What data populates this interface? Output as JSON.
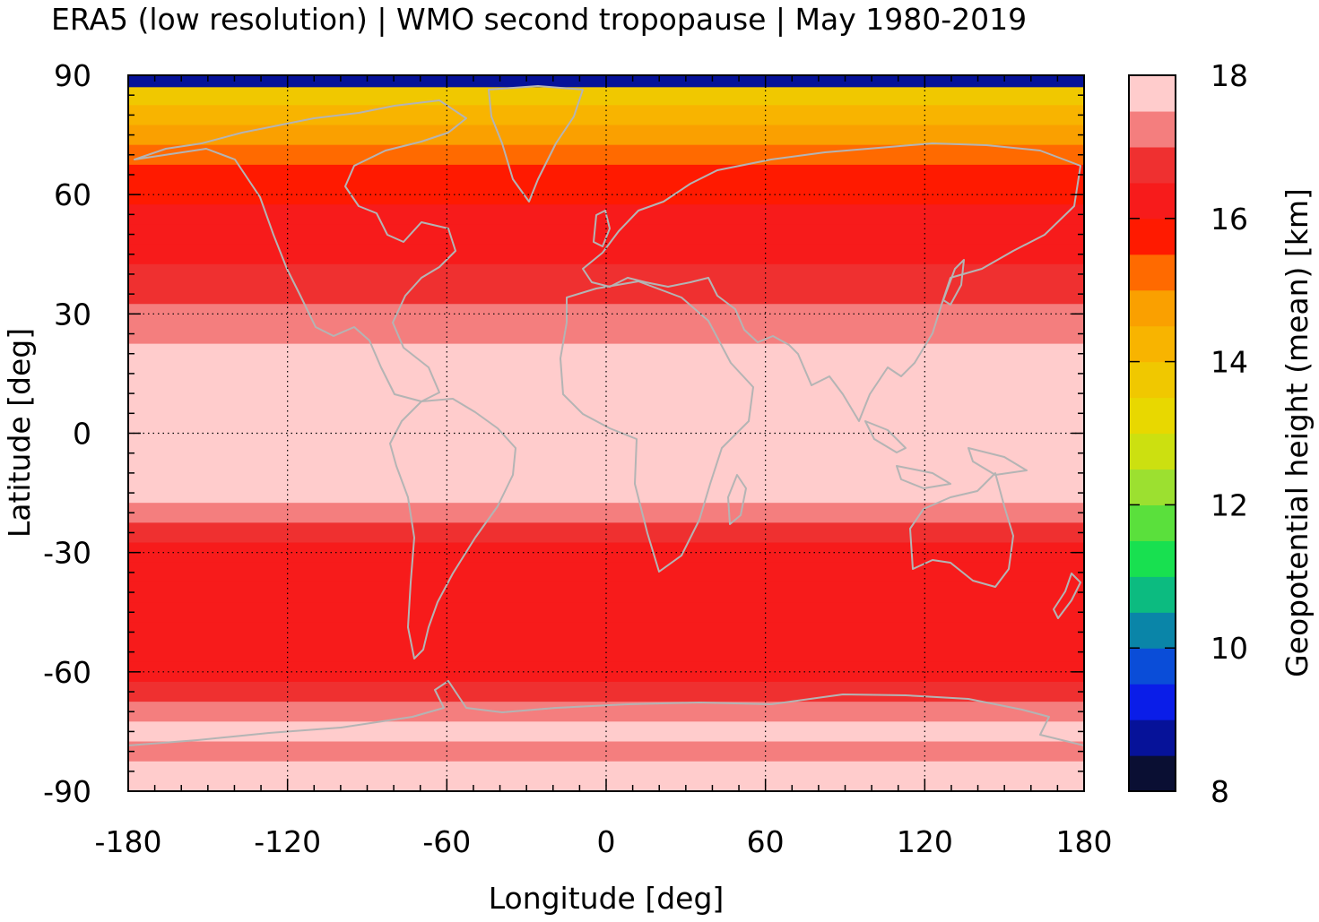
{
  "chart_data": {
    "type": "heatmap",
    "title": "ERA5 (low resolution) | WMO second tropopause | May 1980-2019",
    "xlabel": "Longitude [deg]",
    "ylabel": "Latitude [deg]",
    "xlim": [
      -180,
      180
    ],
    "ylim": [
      -90,
      90
    ],
    "x_ticks": [
      -180,
      -120,
      -60,
      0,
      60,
      120,
      180
    ],
    "x_tick_labels": [
      "-180",
      "-120",
      "-60",
      "0",
      "60",
      "120",
      "180"
    ],
    "y_ticks": [
      90,
      60,
      30,
      0,
      -30,
      -60,
      -90
    ],
    "y_tick_labels": [
      "90",
      "60",
      "30",
      "0",
      "-30",
      "-60",
      "-90"
    ],
    "grid": true,
    "colorbar": {
      "label": "Geopotential height (mean) [km]",
      "range": [
        8,
        18
      ],
      "ticks": [
        8,
        10,
        12,
        14,
        16,
        18
      ],
      "tick_labels": [
        "8",
        "10",
        "12",
        "14",
        "16",
        "18"
      ],
      "colors": [
        "#0a0f33",
        "#061299",
        "#0a1de8",
        "#0a4dd8",
        "#0a85a8",
        "#0cbb80",
        "#18e050",
        "#5ae03c",
        "#9ce030",
        "#cce010",
        "#e8d800",
        "#f0c800",
        "#f8b400",
        "#faa000",
        "#ff6a00",
        "#ff1a00",
        "#f71b1b",
        "#ef3030",
        "#f47e7e",
        "#ffcccc"
      ]
    },
    "zonal_mean_km": [
      {
        "lat": 89,
        "value": 8.5
      },
      {
        "lat": 85,
        "value": 13.6
      },
      {
        "lat": 80,
        "value": 14.4
      },
      {
        "lat": 75,
        "value": 14.8
      },
      {
        "lat": 70,
        "value": 15.0
      },
      {
        "lat": 65,
        "value": 15.5
      },
      {
        "lat": 60,
        "value": 15.8
      },
      {
        "lat": 55,
        "value": 16.0
      },
      {
        "lat": 50,
        "value": 16.1
      },
      {
        "lat": 45,
        "value": 16.3
      },
      {
        "lat": 40,
        "value": 16.5
      },
      {
        "lat": 35,
        "value": 16.8
      },
      {
        "lat": 30,
        "value": 17.0
      },
      {
        "lat": 25,
        "value": 17.3
      },
      {
        "lat": 20,
        "value": 17.6
      },
      {
        "lat": 15,
        "value": 17.8
      },
      {
        "lat": 10,
        "value": 18.0
      },
      {
        "lat": 5,
        "value": 18.0
      },
      {
        "lat": 0,
        "value": 18.0
      },
      {
        "lat": -5,
        "value": 18.0
      },
      {
        "lat": -10,
        "value": 17.8
      },
      {
        "lat": -15,
        "value": 17.5
      },
      {
        "lat": -20,
        "value": 17.0
      },
      {
        "lat": -25,
        "value": 16.6
      },
      {
        "lat": -30,
        "value": 16.2
      },
      {
        "lat": -35,
        "value": 16.1
      },
      {
        "lat": -40,
        "value": 16.0
      },
      {
        "lat": -45,
        "value": 16.0
      },
      {
        "lat": -50,
        "value": 16.0
      },
      {
        "lat": -55,
        "value": 16.1
      },
      {
        "lat": -60,
        "value": 16.4
      },
      {
        "lat": -65,
        "value": 16.8
      },
      {
        "lat": -70,
        "value": 17.3
      },
      {
        "lat": -75,
        "value": 17.6
      },
      {
        "lat": -80,
        "value": 17.2
      },
      {
        "lat": -85,
        "value": 17.8
      },
      {
        "lat": -90,
        "value": 18.0
      }
    ]
  }
}
